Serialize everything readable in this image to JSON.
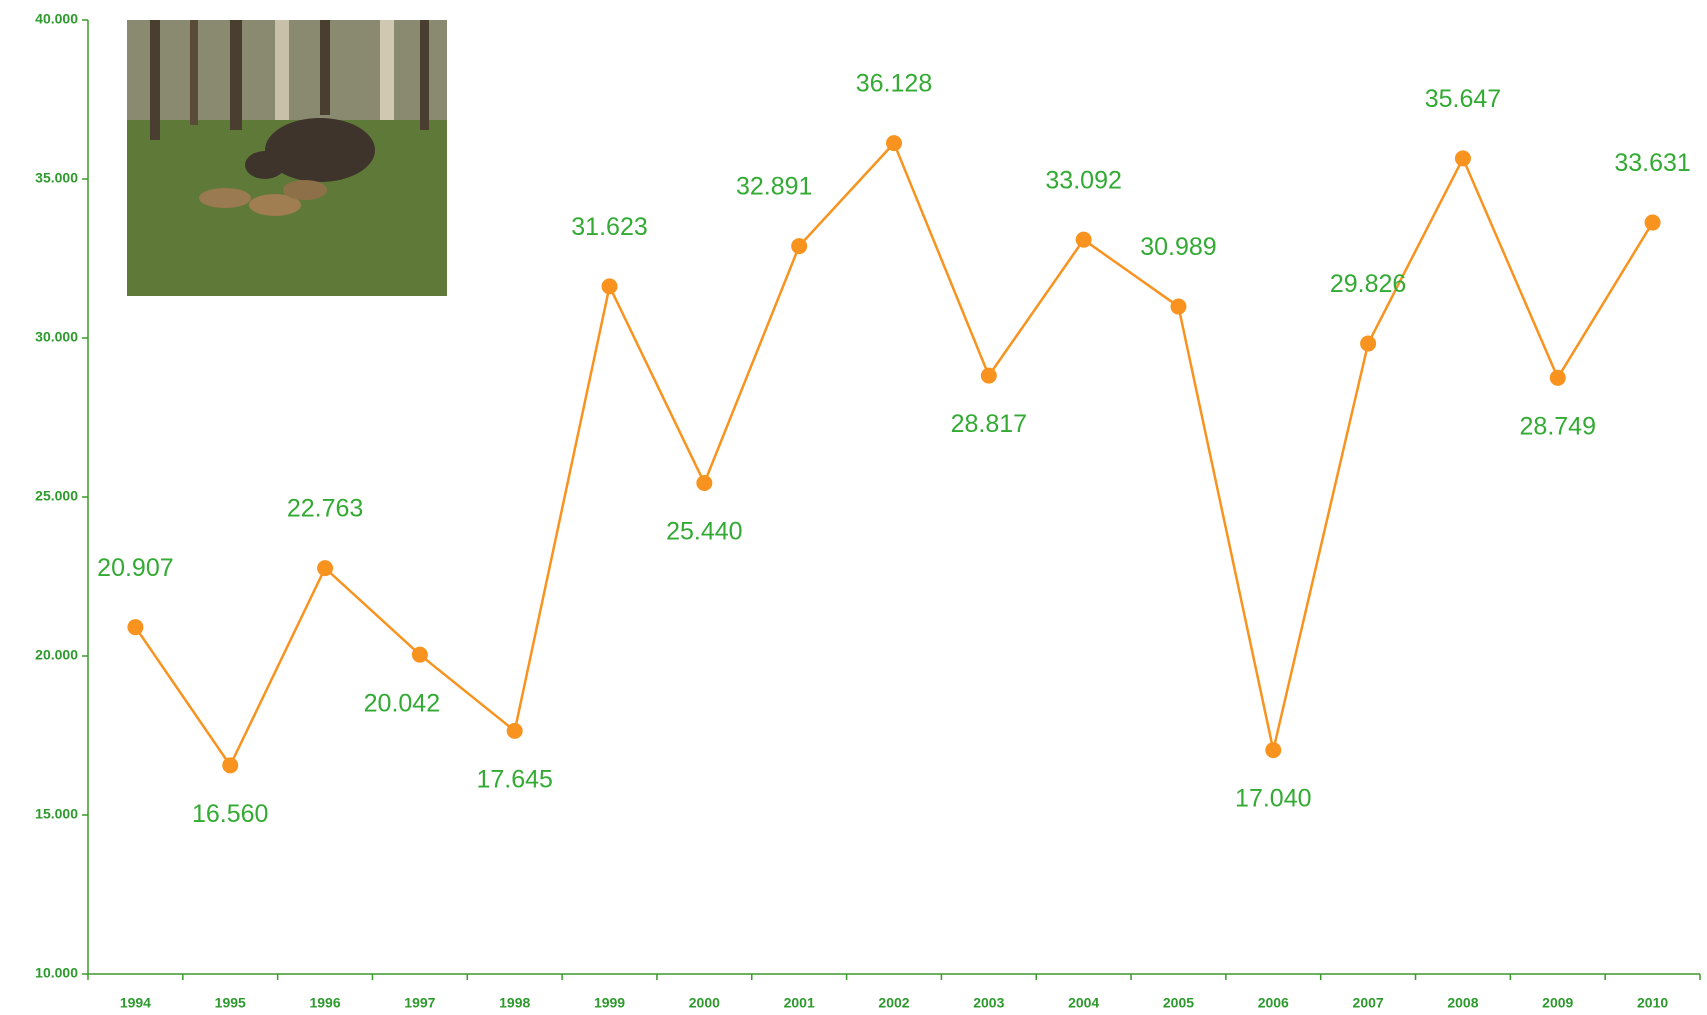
{
  "chart_data": {
    "type": "line",
    "categories": [
      "1994",
      "1995",
      "1996",
      "1997",
      "1998",
      "1999",
      "2000",
      "2001",
      "2002",
      "2003",
      "2004",
      "2005",
      "2006",
      "2007",
      "2008",
      "2009",
      "2010"
    ],
    "values": [
      20907,
      16560,
      22763,
      20042,
      17645,
      31623,
      25440,
      32891,
      36128,
      28817,
      33092,
      30989,
      17040,
      29826,
      35647,
      28749,
      33631
    ],
    "value_labels": [
      "20.907",
      "16.560",
      "22.763",
      "20.042",
      "17.645",
      "31.623",
      "25.440",
      "32.891",
      "36.128",
      "28.817",
      "33.092",
      "30.989",
      "17.040",
      "29.826",
      "35.647",
      "28.749",
      "33.631"
    ],
    "color": "#f7931e",
    "ylim": [
      10000,
      40000
    ],
    "yticks": [
      {
        "value": 10000,
        "label": "10.000"
      },
      {
        "value": 15000,
        "label": "15.000"
      },
      {
        "value": 20000,
        "label": "20.000"
      },
      {
        "value": 25000,
        "label": "25.000"
      },
      {
        "value": 30000,
        "label": "30.000"
      },
      {
        "value": 35000,
        "label": "35.000"
      },
      {
        "value": 40000,
        "label": "40.000"
      }
    ]
  }
}
